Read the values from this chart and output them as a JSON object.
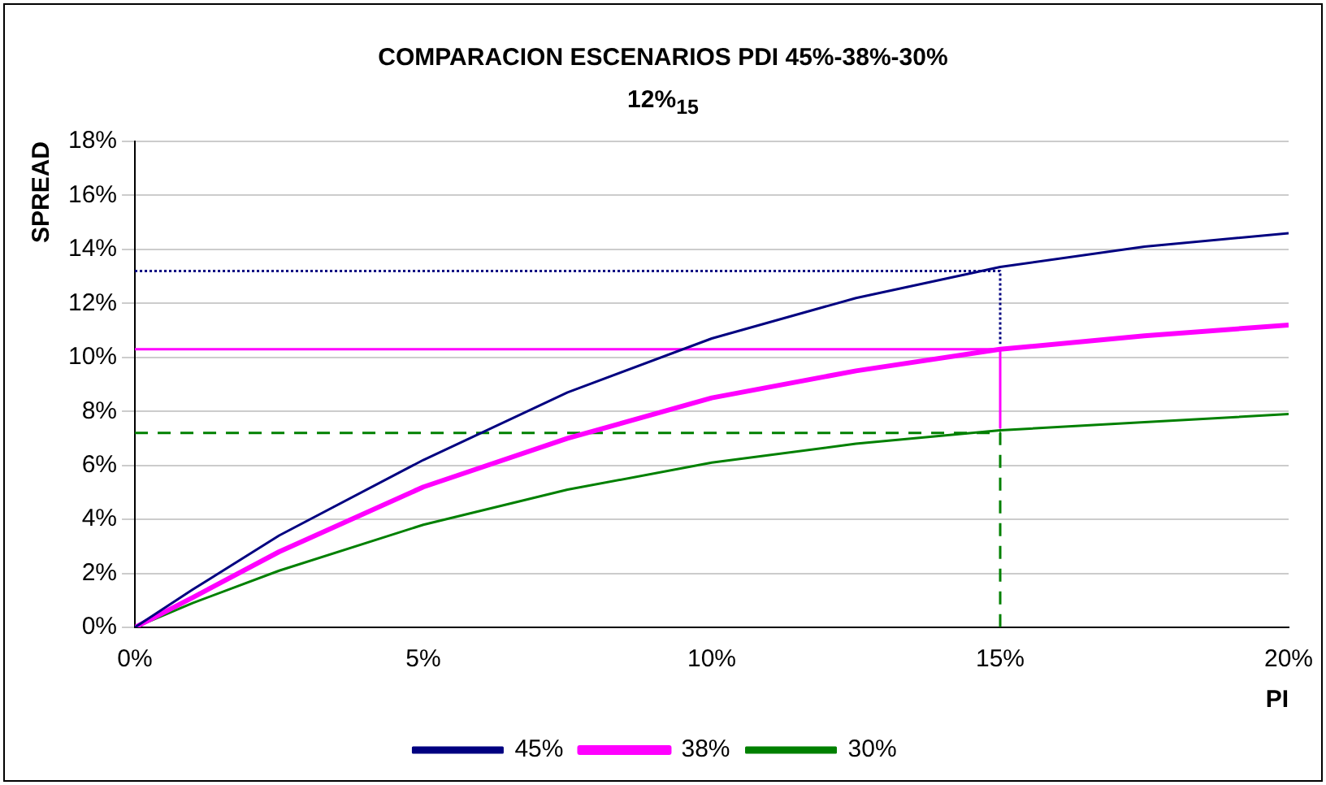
{
  "chart_data": {
    "type": "line",
    "title": "COMPARACION ESCENARIOS PDI 45%-38%-30%",
    "subtitle": "12%$_{15}$",
    "xlabel": "PI",
    "ylabel": "SPREAD",
    "xlim": [
      0,
      20
    ],
    "xticks": [
      {
        "value": 0,
        "label": "0%"
      },
      {
        "value": 5,
        "label": "5%"
      },
      {
        "value": 10,
        "label": "10%"
      },
      {
        "value": 15,
        "label": "15%"
      },
      {
        "value": 20,
        "label": "20%"
      }
    ],
    "ylim": [
      0,
      18
    ],
    "yticks": [
      {
        "value": 0,
        "label": "0%"
      },
      {
        "value": 2,
        "label": "2%"
      },
      {
        "value": 4,
        "label": "4%"
      },
      {
        "value": 6,
        "label": "6%"
      },
      {
        "value": 8,
        "label": "8%"
      },
      {
        "value": 10,
        "label": "10%"
      },
      {
        "value": 12,
        "label": "12%"
      },
      {
        "value": 14,
        "label": "14%"
      },
      {
        "value": 16,
        "label": "16%"
      },
      {
        "value": 18,
        "label": "18%"
      }
    ],
    "grid": "y",
    "legend": "bottom",
    "marker": "none",
    "series": [
      {
        "name": "45%",
        "color": "#000080",
        "x": [
          0,
          1,
          2.5,
          5,
          7.5,
          10,
          12.5,
          15,
          17.5,
          20
        ],
        "values": [
          0,
          1.4,
          3.4,
          6.2,
          8.7,
          10.7,
          12.2,
          13.35,
          14.1,
          14.6
        ]
      },
      {
        "name": "38%",
        "color": "#ff00ff",
        "x": [
          0,
          1,
          2.5,
          5,
          7.5,
          10,
          12.5,
          15,
          17.5,
          20
        ],
        "values": [
          0,
          1.1,
          2.8,
          5.2,
          7.0,
          8.5,
          9.5,
          10.3,
          10.8,
          11.2
        ]
      },
      {
        "name": "30%",
        "color": "#008000",
        "x": [
          0,
          1,
          2.5,
          5,
          7.5,
          10,
          12.5,
          15,
          17.5,
          20
        ],
        "values": [
          0,
          0.9,
          2.1,
          3.8,
          5.1,
          6.1,
          6.8,
          7.3,
          7.6,
          7.9
        ]
      },
      {
        "color": "#000080",
        "line_style": "dotted",
        "x": [
          0,
          15,
          15
        ],
        "values": [
          13.2,
          13.2,
          10.5
        ]
      },
      {
        "color": "#ff00ff",
        "line_style": "solid",
        "x": [
          0,
          15,
          15
        ],
        "values": [
          10.3,
          10.3,
          7.4
        ]
      },
      {
        "color": "#008000",
        "line_style": "dashed",
        "x": [
          0,
          15,
          15
        ],
        "values": [
          7.2,
          7.2,
          0
        ]
      }
    ]
  }
}
